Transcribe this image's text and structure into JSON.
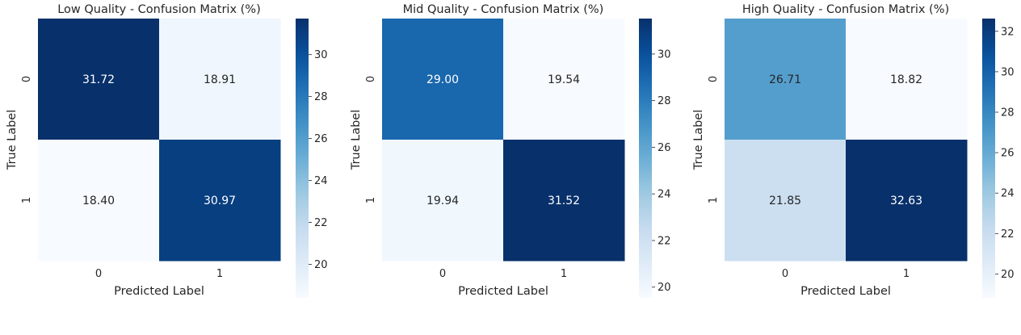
{
  "chart_data": [
    {
      "type": "heatmap",
      "title": "Low Quality - Confusion Matrix (%)",
      "xlabel": "Predicted Label",
      "ylabel": "True Label",
      "x_categories": [
        "0",
        "1"
      ],
      "y_categories": [
        "0",
        "1"
      ],
      "values": [
        [
          31.72,
          18.91
        ],
        [
          18.4,
          30.97
        ]
      ],
      "value_labels": [
        [
          "31.72",
          "18.91"
        ],
        [
          "18.40",
          "30.97"
        ]
      ],
      "colorbar": {
        "range": [
          18.4,
          31.72
        ],
        "ticks": [
          "20",
          "22",
          "24",
          "26",
          "28",
          "30"
        ],
        "tick_values": [
          20,
          22,
          24,
          26,
          28,
          30
        ]
      },
      "colormap": "Blues",
      "grid": false
    },
    {
      "type": "heatmap",
      "title": "Mid Quality - Confusion Matrix (%)",
      "xlabel": "Predicted Label",
      "ylabel": "True Label",
      "x_categories": [
        "0",
        "1"
      ],
      "y_categories": [
        "0",
        "1"
      ],
      "values": [
        [
          29.0,
          19.54
        ],
        [
          19.94,
          31.52
        ]
      ],
      "value_labels": [
        [
          "29.00",
          "19.54"
        ],
        [
          "19.94",
          "31.52"
        ]
      ],
      "colorbar": {
        "range": [
          19.54,
          31.52
        ],
        "ticks": [
          "20",
          "22",
          "24",
          "26",
          "28",
          "30"
        ],
        "tick_values": [
          20,
          22,
          24,
          26,
          28,
          30
        ]
      },
      "colormap": "Blues",
      "grid": false
    },
    {
      "type": "heatmap",
      "title": "High Quality - Confusion Matrix (%)",
      "xlabel": "Predicted Label",
      "ylabel": "True Label",
      "x_categories": [
        "0",
        "1"
      ],
      "y_categories": [
        "0",
        "1"
      ],
      "values": [
        [
          26.71,
          18.82
        ],
        [
          21.85,
          32.63
        ]
      ],
      "value_labels": [
        [
          "26.71",
          "18.82"
        ],
        [
          "21.85",
          "32.63"
        ]
      ],
      "colorbar": {
        "range": [
          18.82,
          32.63
        ],
        "ticks": [
          "20",
          "22",
          "24",
          "26",
          "28",
          "30",
          "32"
        ],
        "tick_values": [
          20,
          22,
          24,
          26,
          28,
          30,
          32
        ]
      },
      "colormap": "Blues",
      "grid": false
    }
  ]
}
